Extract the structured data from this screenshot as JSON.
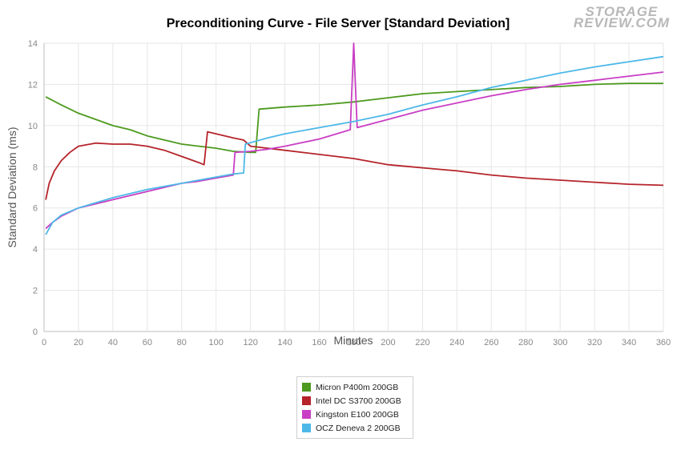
{
  "logo": {
    "line1": "STORAGE",
    "line2": "REVIEW.COM"
  },
  "chart_data": {
    "type": "line",
    "title": "Preconditioning Curve - File Server [Standard Deviation]",
    "xlabel": "Minutes",
    "ylabel": "Standard Deviation (ms)",
    "xlim": [
      0,
      360
    ],
    "ylim": [
      0,
      14
    ],
    "xticks": [
      0,
      20,
      40,
      60,
      80,
      100,
      120,
      140,
      160,
      180,
      200,
      220,
      240,
      260,
      280,
      300,
      320,
      340,
      360
    ],
    "yticks": [
      0,
      2,
      4,
      6,
      8,
      10,
      12,
      14
    ],
    "grid": true,
    "legend_position": "bottom-center",
    "series": [
      {
        "name": "Micron P400m 200GB",
        "color": "#4c9a1e",
        "points": [
          [
            1,
            11.4
          ],
          [
            10,
            11.0
          ],
          [
            20,
            10.6
          ],
          [
            30,
            10.3
          ],
          [
            40,
            10.0
          ],
          [
            50,
            9.8
          ],
          [
            60,
            9.5
          ],
          [
            70,
            9.3
          ],
          [
            80,
            9.1
          ],
          [
            90,
            9.0
          ],
          [
            100,
            8.9
          ],
          [
            110,
            8.75
          ],
          [
            120,
            8.7
          ],
          [
            123,
            8.7
          ],
          [
            125,
            10.8
          ],
          [
            140,
            10.9
          ],
          [
            160,
            11.0
          ],
          [
            180,
            11.15
          ],
          [
            200,
            11.35
          ],
          [
            220,
            11.55
          ],
          [
            240,
            11.65
          ],
          [
            260,
            11.75
          ],
          [
            280,
            11.85
          ],
          [
            300,
            11.9
          ],
          [
            320,
            12.0
          ],
          [
            340,
            12.05
          ],
          [
            360,
            12.05
          ]
        ]
      },
      {
        "name": "Intel DC S3700 200GB",
        "color": "#b5242a",
        "points": [
          [
            1,
            6.4
          ],
          [
            3,
            7.2
          ],
          [
            6,
            7.8
          ],
          [
            10,
            8.3
          ],
          [
            15,
            8.7
          ],
          [
            20,
            9.0
          ],
          [
            30,
            9.15
          ],
          [
            40,
            9.1
          ],
          [
            50,
            9.1
          ],
          [
            60,
            9.0
          ],
          [
            70,
            8.8
          ],
          [
            80,
            8.5
          ],
          [
            90,
            8.2
          ],
          [
            93,
            8.1
          ],
          [
            95,
            9.7
          ],
          [
            100,
            9.6
          ],
          [
            110,
            9.4
          ],
          [
            116,
            9.3
          ],
          [
            120,
            9.0
          ],
          [
            140,
            8.8
          ],
          [
            160,
            8.6
          ],
          [
            180,
            8.4
          ],
          [
            200,
            8.1
          ],
          [
            220,
            7.95
          ],
          [
            240,
            7.8
          ],
          [
            260,
            7.6
          ],
          [
            280,
            7.45
          ],
          [
            300,
            7.35
          ],
          [
            320,
            7.25
          ],
          [
            340,
            7.15
          ],
          [
            360,
            7.1
          ]
        ]
      },
      {
        "name": "Kingston E100 200GB",
        "color": "#c93ec4",
        "points": [
          [
            1,
            5.0
          ],
          [
            5,
            5.3
          ],
          [
            10,
            5.6
          ],
          [
            20,
            6.0
          ],
          [
            30,
            6.2
          ],
          [
            40,
            6.4
          ],
          [
            50,
            6.6
          ],
          [
            60,
            6.8
          ],
          [
            70,
            7.0
          ],
          [
            80,
            7.2
          ],
          [
            90,
            7.3
          ],
          [
            100,
            7.45
          ],
          [
            110,
            7.6
          ],
          [
            111,
            8.7
          ],
          [
            120,
            8.75
          ],
          [
            130,
            8.85
          ],
          [
            140,
            9.0
          ],
          [
            160,
            9.35
          ],
          [
            178,
            9.8
          ],
          [
            180,
            14.0
          ],
          [
            182,
            9.9
          ],
          [
            200,
            10.3
          ],
          [
            220,
            10.75
          ],
          [
            240,
            11.1
          ],
          [
            260,
            11.45
          ],
          [
            280,
            11.75
          ],
          [
            300,
            12.0
          ],
          [
            320,
            12.2
          ],
          [
            340,
            12.4
          ],
          [
            360,
            12.6
          ]
        ]
      },
      {
        "name": "OCZ Deneva 2 200GB",
        "color": "#4db8e8",
        "points": [
          [
            1,
            4.7
          ],
          [
            5,
            5.3
          ],
          [
            10,
            5.65
          ],
          [
            20,
            6.0
          ],
          [
            30,
            6.25
          ],
          [
            40,
            6.5
          ],
          [
            50,
            6.7
          ],
          [
            60,
            6.9
          ],
          [
            70,
            7.05
          ],
          [
            80,
            7.2
          ],
          [
            90,
            7.35
          ],
          [
            100,
            7.5
          ],
          [
            110,
            7.65
          ],
          [
            116,
            7.7
          ],
          [
            117,
            9.1
          ],
          [
            130,
            9.4
          ],
          [
            140,
            9.6
          ],
          [
            160,
            9.9
          ],
          [
            180,
            10.2
          ],
          [
            200,
            10.55
          ],
          [
            220,
            11.0
          ],
          [
            240,
            11.4
          ],
          [
            260,
            11.85
          ],
          [
            280,
            12.2
          ],
          [
            300,
            12.55
          ],
          [
            320,
            12.85
          ],
          [
            340,
            13.1
          ],
          [
            360,
            13.35
          ]
        ]
      }
    ]
  }
}
